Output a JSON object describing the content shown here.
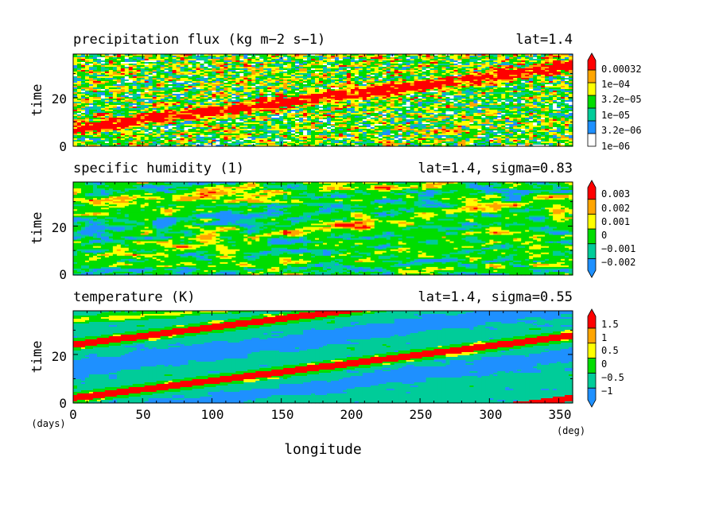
{
  "chart_data": [
    {
      "type": "heatmap",
      "title": "precipitation flux (kg m−2 s−1)",
      "subtitle": "lat=1.4",
      "ylabel": "time",
      "yticks": [
        "0",
        "20"
      ],
      "ylim": [
        0,
        38
      ],
      "xlim": [
        0,
        360
      ],
      "colorbar_labels": [
        "0.00032",
        "1e−04",
        "3.2e−05",
        "1e−05",
        "3.2e−06",
        "1e−06"
      ],
      "colors": [
        "#ffffff",
        "#1e90ff",
        "#00cc99",
        "#00dd00",
        "#ffff00",
        "#ffa500",
        "#ff0000"
      ],
      "features": [
        {
          "name": "band",
          "x0": 0,
          "t0": 8,
          "speed_deg_per_day": 14
        },
        {
          "name": "band",
          "x0": 190,
          "t0": 20,
          "speed_deg_per_day": 14
        }
      ]
    },
    {
      "type": "heatmap",
      "title": "specific humidity (1)",
      "subtitle": "lat=1.4, sigma=0.83",
      "ylabel": "time",
      "yticks": [
        "0",
        "20"
      ],
      "ylim": [
        0,
        38
      ],
      "xlim": [
        0,
        360
      ],
      "colorbar_labels": [
        "0.003",
        "0.002",
        "0.001",
        "0",
        "−0.001",
        "−0.002"
      ],
      "colors": [
        "#1e90ff",
        "#00cc99",
        "#00dd00",
        "#ffff00",
        "#ffa500",
        "#ff0000"
      ]
    },
    {
      "type": "heatmap",
      "title": "temperature (K)",
      "subtitle": "lat=1.4, sigma=0.55",
      "ylabel": "time",
      "yticks": [
        "0",
        "20"
      ],
      "ylim": [
        0,
        38
      ],
      "xlim": [
        0,
        360
      ],
      "xlabel": "longitude",
      "xticks": [
        "0",
        "50",
        "100",
        "150",
        "200",
        "250",
        "300",
        "350"
      ],
      "xunit": "(deg)",
      "yunit": "(days)",
      "colorbar_labels": [
        "1.5",
        "1",
        "0.5",
        "0",
        "−0.5",
        "−1"
      ],
      "colors": [
        "#1e90ff",
        "#00cc99",
        "#00dd00",
        "#ffff00",
        "#ffa500",
        "#ff0000"
      ],
      "features": [
        {
          "name": "warm-band",
          "x0": 0,
          "t0": 2,
          "speed_deg_per_day": 14
        },
        {
          "name": "warm-band",
          "x0": 0,
          "t0": 24,
          "speed_deg_per_day": 14
        }
      ]
    }
  ]
}
